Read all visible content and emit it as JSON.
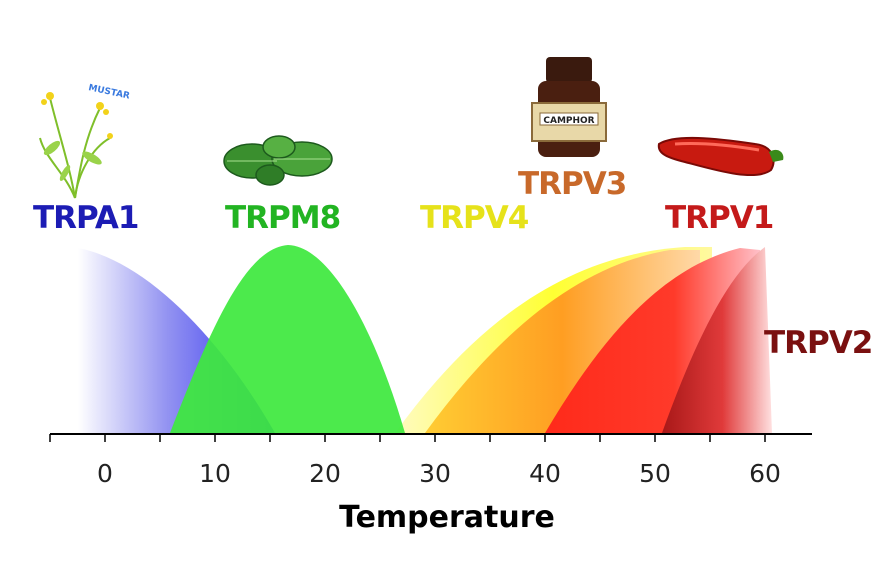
{
  "axis": {
    "title": "Temperature",
    "ticks": [
      "0",
      "10",
      "20",
      "30",
      "40",
      "50",
      "60"
    ]
  },
  "receptors": [
    {
      "label": "TRPA1",
      "color": "#1c1cb4"
    },
    {
      "label": "TRPM8",
      "color": "#22b422"
    },
    {
      "label": "TRPV4",
      "color": "#e6e21a"
    },
    {
      "label": "TRPV3",
      "color": "#c8692a"
    },
    {
      "label": "TRPV1",
      "color": "#c41a1a"
    },
    {
      "label": "TRPV2",
      "color": "#7a1010"
    }
  ],
  "icons": {
    "mustard": {
      "name": "mustard-plant-icon",
      "text": "MUSTARD"
    },
    "mint": {
      "name": "mint-leaves-icon"
    },
    "camphor": {
      "name": "camphor-bottle-icon",
      "text": "CAMPHOR"
    },
    "chili": {
      "name": "chili-pepper-icon"
    }
  }
}
